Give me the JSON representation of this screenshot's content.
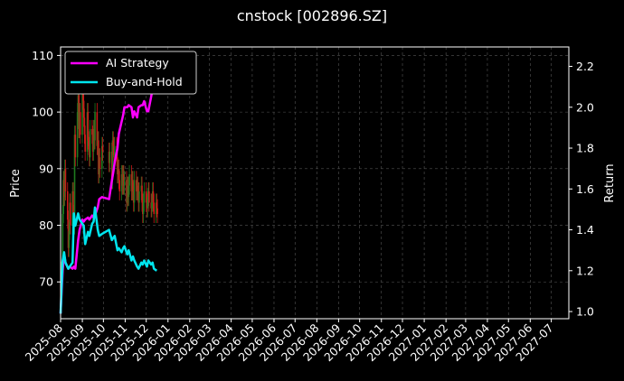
{
  "chart_data": {
    "type": "line",
    "title": "cnstock [002896.SZ]",
    "ylabel": "Price",
    "y2label": "Return",
    "ylim": [
      63.5,
      111.5
    ],
    "y2lim": [
      0.965,
      2.295
    ],
    "yticks": [
      70,
      80,
      90,
      100,
      110
    ],
    "y2ticks": [
      1.0,
      1.2,
      1.4,
      1.6,
      1.8,
      2.0,
      2.2
    ],
    "xlim": [
      "2025-08-01",
      "2027-07-26"
    ],
    "xticks": [
      "2025-08",
      "2025-09",
      "2025-10",
      "2025-11",
      "2025-12",
      "2026-01",
      "2026-02",
      "2026-03",
      "2026-04",
      "2026-05",
      "2026-06",
      "2026-07",
      "2026-08",
      "2026-09",
      "2026-10",
      "2026-11",
      "2026-12",
      "2027-01",
      "2027-02",
      "2027-03",
      "2027-04",
      "2027-05",
      "2027-06",
      "2027-07"
    ],
    "grid": true,
    "legend_position": "top-left",
    "colors": {
      "up": "#1f7a1f",
      "down": "#cc1a1a",
      "ai": "#ff00ff",
      "bh": "#00e5ee",
      "grid": "#555555"
    },
    "price_series": {
      "x": [
        "2025-08-01",
        "2025-08-02",
        "2025-08-04",
        "2025-08-05",
        "2025-08-06",
        "2025-08-07",
        "2025-08-08",
        "2025-08-11",
        "2025-08-12",
        "2025-08-13",
        "2025-08-14",
        "2025-08-15",
        "2025-08-18",
        "2025-08-19",
        "2025-08-20",
        "2025-08-21",
        "2025-08-22",
        "2025-08-25",
        "2025-08-26",
        "2025-08-27",
        "2025-08-28",
        "2025-08-29",
        "2025-09-01",
        "2025-09-02",
        "2025-09-03",
        "2025-09-04",
        "2025-09-05",
        "2025-09-08",
        "2025-09-09",
        "2025-09-10",
        "2025-09-11",
        "2025-09-12",
        "2025-09-15",
        "2025-09-16",
        "2025-09-17",
        "2025-09-18",
        "2025-09-19",
        "2025-09-22",
        "2025-09-23",
        "2025-09-24",
        "2025-09-25",
        "2025-09-26",
        "2025-09-29",
        "2025-09-30",
        "2025-10-09",
        "2025-10-10",
        "2025-10-13",
        "2025-10-14",
        "2025-10-15",
        "2025-10-16",
        "2025-10-17",
        "2025-10-20",
        "2025-10-21",
        "2025-10-22",
        "2025-10-23",
        "2025-10-24",
        "2025-10-27",
        "2025-10-28",
        "2025-10-29",
        "2025-10-30",
        "2025-10-31",
        "2025-11-03",
        "2025-11-04",
        "2025-11-05",
        "2025-11-06",
        "2025-11-07",
        "2025-11-10",
        "2025-11-11",
        "2025-11-12",
        "2025-11-13",
        "2025-11-14",
        "2025-11-17",
        "2025-11-18",
        "2025-11-19",
        "2025-11-20",
        "2025-11-21",
        "2025-11-24",
        "2025-11-25",
        "2025-11-26",
        "2025-11-27",
        "2025-11-28",
        "2025-12-01",
        "2025-12-02",
        "2025-12-03",
        "2025-12-04",
        "2025-12-05",
        "2025-12-08",
        "2025-12-09",
        "2025-12-10",
        "2025-12-11",
        "2025-12-12",
        "2025-12-15",
        "2025-12-16",
        "2025-12-17"
      ],
      "close": [
        66,
        72,
        82,
        88,
        85,
        90,
        86,
        81,
        76,
        79,
        84,
        80,
        86,
        82,
        80,
        96,
        92,
        100,
        103,
        97,
        100,
        96,
        105,
        102,
        99,
        96,
        93,
        100,
        95,
        94,
        92,
        97,
        96,
        93,
        97,
        95,
        100,
        94,
        95,
        89,
        92,
        90,
        94,
        93,
        91,
        93,
        88,
        95,
        94,
        92,
        94,
        92,
        89,
        90,
        88,
        86,
        89,
        87,
        89,
        87,
        88,
        84,
        87,
        85,
        87,
        89,
        86,
        88,
        86,
        84,
        88,
        86,
        87,
        86,
        84,
        86,
        87,
        84,
        82,
        84,
        86,
        84,
        83,
        85,
        86,
        84,
        83,
        84,
        86,
        84,
        82,
        84,
        83,
        82
      ]
    },
    "series": [
      {
        "name": "AI Strategy",
        "x": [
          "2025-08-01",
          "2025-08-04",
          "2025-08-06",
          "2025-08-08",
          "2025-08-12",
          "2025-08-14",
          "2025-08-18",
          "2025-08-20",
          "2025-08-22",
          "2025-08-26",
          "2025-08-28",
          "2025-09-01",
          "2025-09-03",
          "2025-09-05",
          "2025-09-09",
          "2025-09-11",
          "2025-09-15",
          "2025-09-17",
          "2025-09-19",
          "2025-09-23",
          "2025-09-25",
          "2025-09-29",
          "2025-10-09",
          "2025-10-13",
          "2025-10-15",
          "2025-10-17",
          "2025-10-21",
          "2025-10-23",
          "2025-10-27",
          "2025-10-29",
          "2025-10-31",
          "2025-11-04",
          "2025-11-06",
          "2025-11-10",
          "2025-11-12",
          "2025-11-14",
          "2025-11-18",
          "2025-11-20",
          "2025-11-24",
          "2025-11-26",
          "2025-11-28",
          "2025-12-02",
          "2025-12-04",
          "2025-12-08",
          "2025-12-10",
          "2025-12-12",
          "2025-12-16"
        ],
        "values": [
          0.99,
          1.2,
          1.28,
          1.24,
          1.21,
          1.22,
          1.21,
          1.22,
          1.21,
          1.35,
          1.4,
          1.45,
          1.44,
          1.45,
          1.46,
          1.45,
          1.47,
          1.46,
          1.47,
          1.51,
          1.55,
          1.56,
          1.55,
          1.64,
          1.68,
          1.73,
          1.8,
          1.87,
          1.93,
          1.96,
          2.0,
          2.0,
          2.01,
          2.0,
          1.95,
          1.98,
          1.95,
          2.0,
          2.01,
          2.01,
          2.03,
          1.98,
          1.98,
          2.05,
          2.09,
          2.13,
          2.2
        ]
      },
      {
        "name": "Buy-and-Hold",
        "x": [
          "2025-08-01",
          "2025-08-04",
          "2025-08-06",
          "2025-08-08",
          "2025-08-12",
          "2025-08-14",
          "2025-08-18",
          "2025-08-20",
          "2025-08-22",
          "2025-08-26",
          "2025-08-28",
          "2025-09-01",
          "2025-09-03",
          "2025-09-05",
          "2025-09-09",
          "2025-09-11",
          "2025-09-15",
          "2025-09-17",
          "2025-09-19",
          "2025-09-23",
          "2025-09-25",
          "2025-09-29",
          "2025-10-09",
          "2025-10-13",
          "2025-10-15",
          "2025-10-17",
          "2025-10-21",
          "2025-10-23",
          "2025-10-27",
          "2025-10-29",
          "2025-10-31",
          "2025-11-04",
          "2025-11-06",
          "2025-11-10",
          "2025-11-12",
          "2025-11-14",
          "2025-11-18",
          "2025-11-20",
          "2025-11-24",
          "2025-11-26",
          "2025-11-28",
          "2025-12-02",
          "2025-12-04",
          "2025-12-08",
          "2025-12-10",
          "2025-12-12",
          "2025-12-16"
        ],
        "values": [
          0.99,
          1.25,
          1.29,
          1.24,
          1.21,
          1.22,
          1.24,
          1.48,
          1.42,
          1.48,
          1.45,
          1.43,
          1.42,
          1.33,
          1.39,
          1.37,
          1.43,
          1.44,
          1.51,
          1.4,
          1.37,
          1.38,
          1.4,
          1.35,
          1.36,
          1.37,
          1.3,
          1.31,
          1.29,
          1.31,
          1.32,
          1.28,
          1.3,
          1.25,
          1.27,
          1.25,
          1.22,
          1.21,
          1.24,
          1.23,
          1.25,
          1.22,
          1.25,
          1.23,
          1.24,
          1.21,
          1.2
        ]
      }
    ]
  }
}
